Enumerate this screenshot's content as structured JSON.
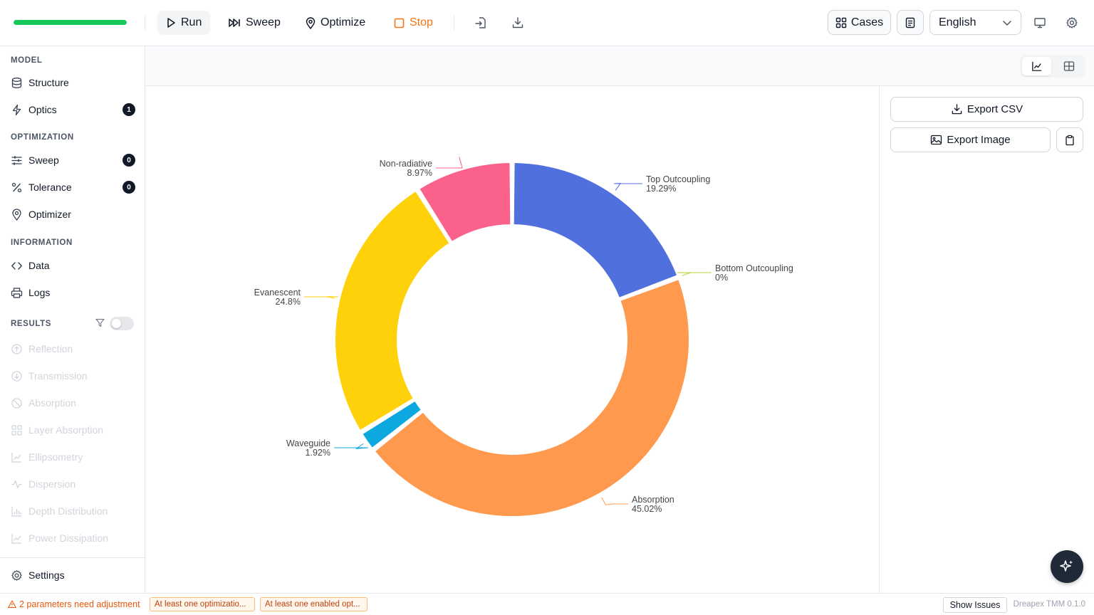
{
  "toolbar": {
    "progress": 1.0,
    "run_label": "Run",
    "sweep_label": "Sweep",
    "optimize_label": "Optimize",
    "stop_label": "Stop",
    "cases_label": "Cases",
    "language": "English"
  },
  "sidebar": {
    "model_heading": "MODEL",
    "structure_label": "Structure",
    "optics_label": "Optics",
    "optics_badge": "1",
    "optimization_heading": "OPTIMIZATION",
    "sweep_label": "Sweep",
    "sweep_badge": "0",
    "tolerance_label": "Tolerance",
    "tolerance_badge": "0",
    "optimizer_label": "Optimizer",
    "information_heading": "INFORMATION",
    "data_label": "Data",
    "logs_label": "Logs",
    "results_heading": "RESULTS",
    "results": [
      "Reflection",
      "Transmission",
      "Absorption",
      "Layer Absorption",
      "Ellipsometry",
      "Dispersion",
      "Depth Distribution",
      "Power Dissipation"
    ],
    "settings_label": "Settings"
  },
  "panel": {
    "export_csv": "Export CSV",
    "export_image": "Export Image"
  },
  "status": {
    "warning": "2 parameters need adjustment",
    "chip1": "At least one optimizatio...",
    "chip2": "At least one enabled opt...",
    "show_issues": "Show Issues",
    "version": "Dreapex TMM 0.1.0"
  },
  "colors": {
    "accent": "#16c75a",
    "stop": "#f97316",
    "warning": "#ea580c"
  },
  "chart_data": {
    "type": "pie",
    "donut": true,
    "labels": [
      "Top Outcoupling",
      "Bottom Outcoupling",
      "Absorption",
      "Waveguide",
      "Evanescent",
      "Non-radiative"
    ],
    "values": [
      19.29,
      0,
      45.02,
      1.92,
      24.8,
      8.97
    ],
    "value_labels": [
      "19.29%",
      "0%",
      "45.02%",
      "1.92%",
      "24.8%",
      "8.97%"
    ],
    "colors": [
      "#5070dd",
      "#b6d634",
      "#ff994d",
      "#0ca8df",
      "#ffd10a",
      "#fb628b"
    ]
  }
}
